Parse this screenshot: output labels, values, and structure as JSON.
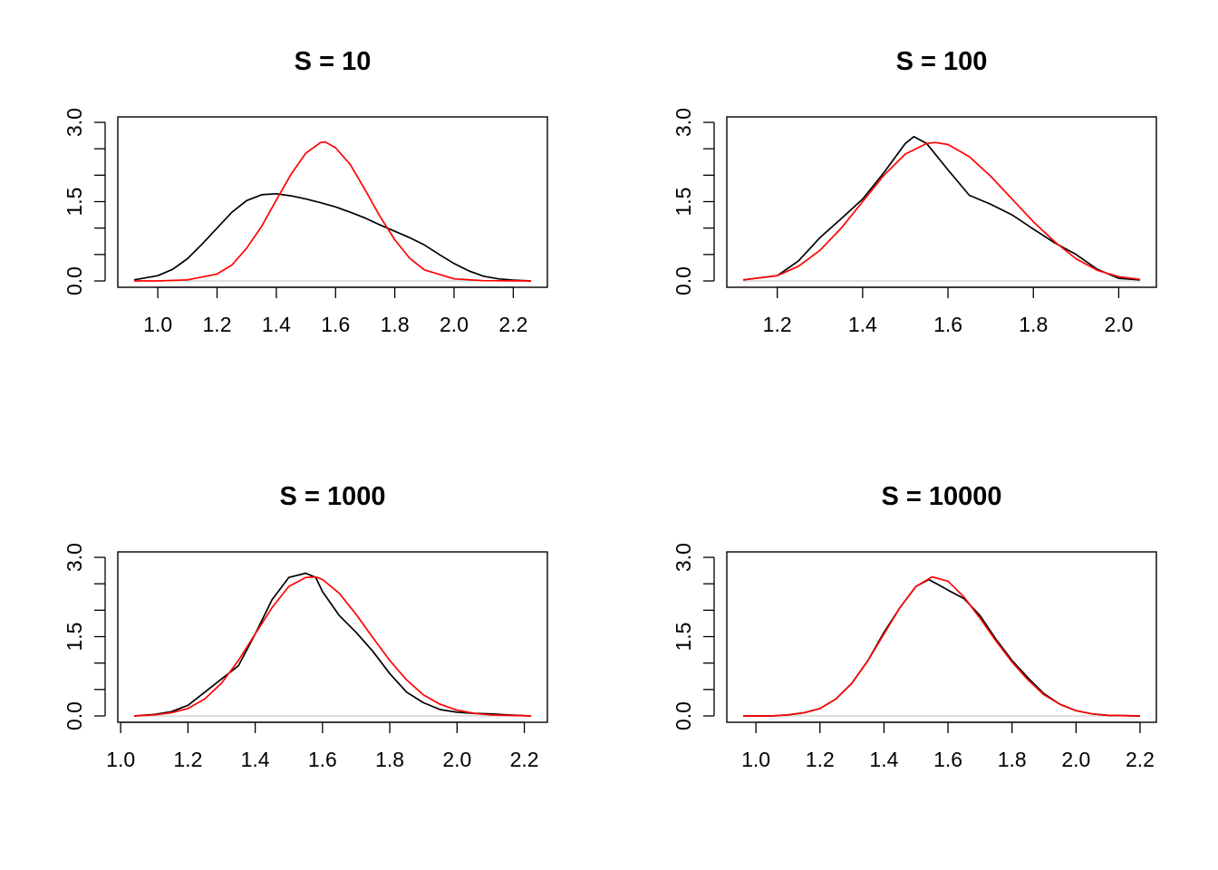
{
  "chart_data": [
    {
      "type": "line",
      "title": "S = 10",
      "xlabel": "",
      "ylabel": "",
      "xlim": [
        0.92,
        2.26
      ],
      "ylim": [
        0,
        3
      ],
      "xticks": [
        1.0,
        1.2,
        1.4,
        1.6,
        1.8,
        2.0,
        2.2
      ],
      "xtick_labels": [
        "1.0",
        "1.2",
        "1.4",
        "1.6",
        "1.8",
        "2.0",
        "2.2"
      ],
      "yticks": [
        0,
        0.5,
        1,
        1.5,
        2,
        2.5,
        3
      ],
      "ylabels": [
        {
          "value": 0,
          "label": "0.0"
        },
        {
          "value": 1.5,
          "label": "1.5"
        },
        {
          "value": 3,
          "label": "3.0"
        }
      ],
      "baseline": true,
      "series": [
        {
          "color": "#000000",
          "x": [
            0.92,
            1.0,
            1.05,
            1.1,
            1.15,
            1.2,
            1.25,
            1.3,
            1.35,
            1.4,
            1.45,
            1.5,
            1.55,
            1.6,
            1.65,
            1.7,
            1.75,
            1.8,
            1.85,
            1.9,
            1.95,
            2.0,
            2.05,
            2.1,
            2.15,
            2.2,
            2.26
          ],
          "y": [
            0.02,
            0.1,
            0.22,
            0.42,
            0.7,
            1.0,
            1.3,
            1.52,
            1.63,
            1.65,
            1.61,
            1.55,
            1.48,
            1.4,
            1.3,
            1.19,
            1.06,
            0.94,
            0.82,
            0.68,
            0.5,
            0.33,
            0.19,
            0.09,
            0.04,
            0.015,
            0.0
          ]
        },
        {
          "color": "#ff0000",
          "x": [
            0.92,
            1.0,
            1.1,
            1.2,
            1.25,
            1.3,
            1.35,
            1.4,
            1.45,
            1.5,
            1.55,
            1.565,
            1.6,
            1.65,
            1.7,
            1.75,
            1.8,
            1.85,
            1.9,
            2.0,
            2.1,
            2.26
          ],
          "y": [
            0.0,
            0.0,
            0.02,
            0.13,
            0.3,
            0.62,
            1.03,
            1.53,
            2.02,
            2.42,
            2.62,
            2.63,
            2.52,
            2.2,
            1.72,
            1.22,
            0.78,
            0.43,
            0.21,
            0.04,
            0.005,
            0.0
          ]
        }
      ]
    },
    {
      "type": "line",
      "title": "S = 100",
      "xlabel": "",
      "ylabel": "",
      "xlim": [
        1.12,
        2.05
      ],
      "ylim": [
        0,
        3
      ],
      "xticks": [
        1.2,
        1.4,
        1.6,
        1.8,
        2.0
      ],
      "xtick_labels": [
        "1.2",
        "1.4",
        "1.6",
        "1.8",
        "2.0"
      ],
      "yticks": [
        0,
        0.5,
        1,
        1.5,
        2,
        2.5,
        3
      ],
      "ylabels": [
        {
          "value": 0,
          "label": "0.0"
        },
        {
          "value": 1.5,
          "label": "1.5"
        },
        {
          "value": 3,
          "label": "3.0"
        }
      ],
      "baseline": true,
      "series": [
        {
          "color": "#000000",
          "x": [
            1.12,
            1.2,
            1.25,
            1.3,
            1.35,
            1.4,
            1.45,
            1.5,
            1.52,
            1.55,
            1.6,
            1.65,
            1.7,
            1.75,
            1.8,
            1.85,
            1.9,
            1.95,
            2.0,
            2.05
          ],
          "y": [
            0.02,
            0.1,
            0.38,
            0.82,
            1.18,
            1.55,
            2.05,
            2.6,
            2.73,
            2.6,
            2.1,
            1.62,
            1.45,
            1.25,
            0.98,
            0.72,
            0.5,
            0.22,
            0.05,
            0.02
          ]
        },
        {
          "color": "#ff0000",
          "x": [
            1.12,
            1.2,
            1.25,
            1.3,
            1.35,
            1.4,
            1.45,
            1.5,
            1.55,
            1.57,
            1.6,
            1.65,
            1.7,
            1.75,
            1.8,
            1.85,
            1.9,
            1.95,
            2.0,
            2.05
          ],
          "y": [
            0.02,
            0.1,
            0.28,
            0.58,
            1.0,
            1.5,
            2.0,
            2.4,
            2.6,
            2.62,
            2.58,
            2.35,
            1.98,
            1.55,
            1.12,
            0.74,
            0.42,
            0.2,
            0.08,
            0.03
          ]
        }
      ]
    },
    {
      "type": "line",
      "title": "S = 1000",
      "xlabel": "",
      "ylabel": "",
      "xlim": [
        1.04,
        2.22
      ],
      "ylim": [
        0,
        3
      ],
      "xticks": [
        1.0,
        1.2,
        1.4,
        1.6,
        1.8,
        2.0,
        2.2
      ],
      "xtick_labels": [
        "1.0",
        "1.2",
        "1.4",
        "1.6",
        "1.8",
        "2.0",
        "2.2"
      ],
      "yticks": [
        0,
        0.5,
        1,
        1.5,
        2,
        2.5,
        3
      ],
      "ylabels": [
        {
          "value": 0,
          "label": "0.0"
        },
        {
          "value": 1.5,
          "label": "1.5"
        },
        {
          "value": 3,
          "label": "3.0"
        }
      ],
      "baseline": true,
      "series": [
        {
          "color": "#000000",
          "x": [
            1.04,
            1.1,
            1.15,
            1.2,
            1.25,
            1.3,
            1.35,
            1.4,
            1.45,
            1.5,
            1.55,
            1.58,
            1.6,
            1.65,
            1.7,
            1.75,
            1.8,
            1.85,
            1.9,
            1.95,
            2.0,
            2.05,
            2.1,
            2.15,
            2.22
          ],
          "y": [
            0.0,
            0.03,
            0.08,
            0.2,
            0.45,
            0.7,
            0.95,
            1.55,
            2.2,
            2.62,
            2.7,
            2.62,
            2.35,
            1.9,
            1.58,
            1.22,
            0.8,
            0.45,
            0.25,
            0.12,
            0.07,
            0.05,
            0.04,
            0.02,
            0.0
          ]
        },
        {
          "color": "#ff0000",
          "x": [
            1.04,
            1.1,
            1.15,
            1.2,
            1.25,
            1.3,
            1.35,
            1.4,
            1.45,
            1.5,
            1.55,
            1.58,
            1.6,
            1.65,
            1.7,
            1.75,
            1.8,
            1.85,
            1.9,
            1.95,
            2.0,
            2.05,
            2.1,
            2.15,
            2.22
          ],
          "y": [
            0.0,
            0.02,
            0.06,
            0.14,
            0.32,
            0.62,
            1.05,
            1.55,
            2.05,
            2.45,
            2.62,
            2.63,
            2.58,
            2.32,
            1.92,
            1.48,
            1.05,
            0.68,
            0.4,
            0.22,
            0.11,
            0.05,
            0.02,
            0.01,
            0.0
          ]
        }
      ]
    },
    {
      "type": "line",
      "title": "S = 10000",
      "xlabel": "",
      "ylabel": "",
      "xlim": [
        0.96,
        2.2
      ],
      "ylim": [
        0,
        3
      ],
      "xticks": [
        1.0,
        1.2,
        1.4,
        1.6,
        1.8,
        2.0,
        2.2
      ],
      "xtick_labels": [
        "1.0",
        "1.2",
        "1.4",
        "1.6",
        "1.8",
        "2.0",
        "2.2"
      ],
      "yticks": [
        0,
        0.5,
        1,
        1.5,
        2,
        2.5,
        3
      ],
      "ylabels": [
        {
          "value": 0,
          "label": "0.0"
        },
        {
          "value": 1.5,
          "label": "1.5"
        },
        {
          "value": 3,
          "label": "3.0"
        }
      ],
      "baseline": true,
      "series": [
        {
          "color": "#000000",
          "x": [
            0.96,
            1.05,
            1.1,
            1.15,
            1.2,
            1.25,
            1.3,
            1.35,
            1.4,
            1.45,
            1.5,
            1.54,
            1.58,
            1.6,
            1.65,
            1.7,
            1.75,
            1.8,
            1.85,
            1.9,
            1.95,
            2.0,
            2.05,
            2.1,
            2.2
          ],
          "y": [
            0.0,
            0.0,
            0.02,
            0.06,
            0.14,
            0.32,
            0.62,
            1.05,
            1.58,
            2.05,
            2.45,
            2.58,
            2.45,
            2.38,
            2.22,
            1.9,
            1.45,
            1.05,
            0.72,
            0.42,
            0.22,
            0.1,
            0.04,
            0.01,
            0.0
          ]
        },
        {
          "color": "#ff0000",
          "x": [
            0.96,
            1.05,
            1.1,
            1.15,
            1.2,
            1.25,
            1.3,
            1.35,
            1.4,
            1.45,
            1.5,
            1.55,
            1.6,
            1.65,
            1.7,
            1.75,
            1.8,
            1.85,
            1.9,
            1.95,
            2.0,
            2.05,
            2.1,
            2.2
          ],
          "y": [
            0.0,
            0.0,
            0.02,
            0.06,
            0.14,
            0.32,
            0.62,
            1.05,
            1.55,
            2.05,
            2.45,
            2.63,
            2.55,
            2.25,
            1.85,
            1.42,
            1.02,
            0.68,
            0.4,
            0.22,
            0.1,
            0.04,
            0.01,
            0.0
          ]
        }
      ]
    }
  ]
}
